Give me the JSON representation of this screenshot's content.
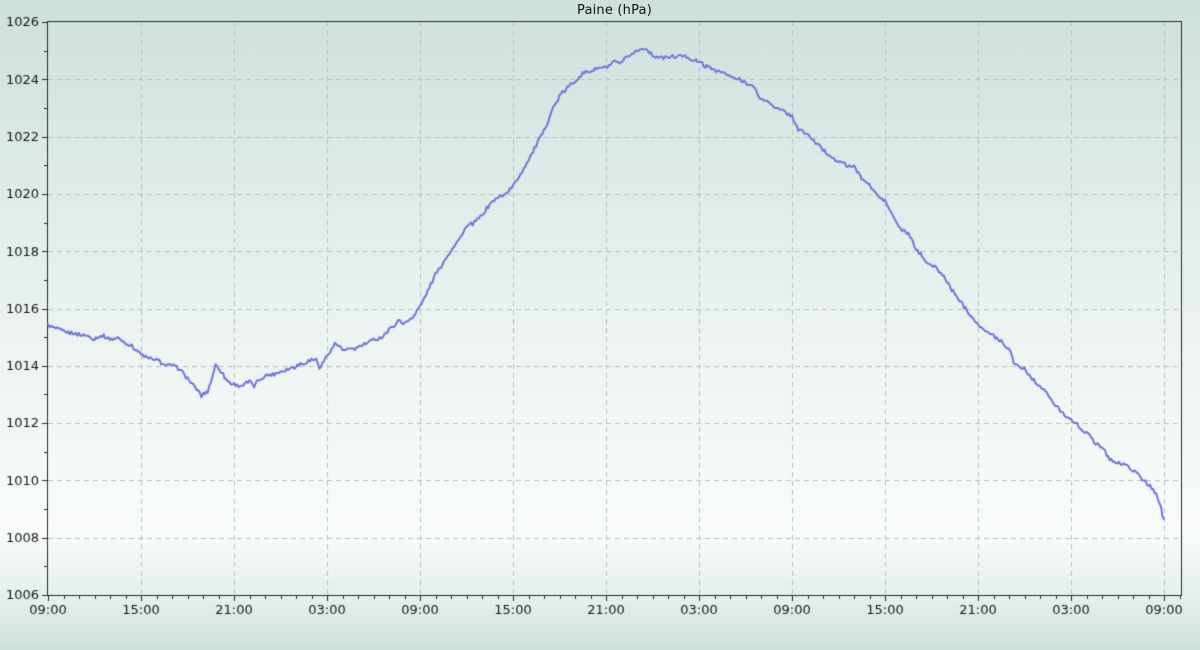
{
  "chart_data": {
    "type": "line",
    "title": "Paine (hPa)",
    "xlabel": "",
    "ylabel": "",
    "ylim": [
      1006,
      1026
    ],
    "y_major_tick_step": 2,
    "y_minor_tick_step": 1,
    "y_tick_labels": [
      "1006",
      "1008",
      "1010",
      "1012",
      "1014",
      "1016",
      "1018",
      "1020",
      "1022",
      "1024",
      "1026"
    ],
    "x_hours_total": 72,
    "x_major_tick_every_hours": 6,
    "x_minor_tick_every_hours": 1,
    "x_tick_labels": [
      "09:00",
      "15:00",
      "21:00",
      "03:00",
      "09:00",
      "15:00",
      "21:00",
      "03:00",
      "09:00",
      "15:00",
      "21:00",
      "03:00",
      "09:00"
    ],
    "grid": {
      "style": "dashed",
      "major_x": true,
      "major_y": true
    },
    "legend": "none",
    "series": [
      {
        "name": "Paine",
        "color": "#7276d6",
        "points_hours_hpa": [
          [
            0,
            1015.4
          ],
          [
            0.5,
            1015.3
          ],
          [
            1,
            1015.2
          ],
          [
            1.5,
            1015.15
          ],
          [
            2,
            1015.1
          ],
          [
            2.5,
            1015.05
          ],
          [
            3,
            1014.95
          ],
          [
            3.5,
            1015.05
          ],
          [
            4,
            1014.95
          ],
          [
            4.5,
            1014.95
          ],
          [
            5,
            1014.8
          ],
          [
            5.5,
            1014.65
          ],
          [
            6,
            1014.4
          ],
          [
            6.5,
            1014.25
          ],
          [
            7,
            1014.2
          ],
          [
            7.5,
            1014.05
          ],
          [
            8,
            1014.0
          ],
          [
            8.5,
            1013.9
          ],
          [
            9,
            1013.55
          ],
          [
            9.5,
            1013.25
          ],
          [
            9.9,
            1012.95
          ],
          [
            10.3,
            1013.1
          ],
          [
            10.6,
            1013.6
          ],
          [
            10.8,
            1014.0
          ],
          [
            11,
            1013.95
          ],
          [
            11.3,
            1013.7
          ],
          [
            11.6,
            1013.45
          ],
          [
            12,
            1013.35
          ],
          [
            12.5,
            1013.3
          ],
          [
            13,
            1013.45
          ],
          [
            13.3,
            1013.3
          ],
          [
            13.6,
            1013.5
          ],
          [
            14,
            1013.65
          ],
          [
            14.5,
            1013.7
          ],
          [
            15,
            1013.8
          ],
          [
            15.5,
            1013.9
          ],
          [
            16,
            1014.0
          ],
          [
            16.5,
            1014.1
          ],
          [
            17,
            1014.2
          ],
          [
            17.3,
            1014.25
          ],
          [
            17.5,
            1013.9
          ],
          [
            17.8,
            1014.15
          ],
          [
            18,
            1014.35
          ],
          [
            18.5,
            1014.75
          ],
          [
            18.8,
            1014.7
          ],
          [
            19,
            1014.55
          ],
          [
            19.5,
            1014.55
          ],
          [
            20,
            1014.65
          ],
          [
            20.5,
            1014.75
          ],
          [
            21,
            1014.9
          ],
          [
            21.5,
            1015.0
          ],
          [
            22,
            1015.25
          ],
          [
            22.4,
            1015.45
          ],
          [
            22.7,
            1015.6
          ],
          [
            23,
            1015.45
          ],
          [
            23.5,
            1015.7
          ],
          [
            24,
            1016.05
          ],
          [
            24.5,
            1016.6
          ],
          [
            25,
            1017.2
          ],
          [
            25.5,
            1017.6
          ],
          [
            26,
            1018.05
          ],
          [
            26.5,
            1018.4
          ],
          [
            27,
            1018.85
          ],
          [
            27.5,
            1019.0
          ],
          [
            28,
            1019.25
          ],
          [
            28.5,
            1019.65
          ],
          [
            29,
            1019.85
          ],
          [
            29.5,
            1020.0
          ],
          [
            30,
            1020.25
          ],
          [
            30.5,
            1020.7
          ],
          [
            31,
            1021.2
          ],
          [
            31.5,
            1021.7
          ],
          [
            32,
            1022.2
          ],
          [
            32.5,
            1022.9
          ],
          [
            33,
            1023.4
          ],
          [
            33.5,
            1023.7
          ],
          [
            34,
            1023.95
          ],
          [
            34.5,
            1024.2
          ],
          [
            35,
            1024.3
          ],
          [
            35.5,
            1024.4
          ],
          [
            36,
            1024.4
          ],
          [
            36.5,
            1024.6
          ],
          [
            37,
            1024.55
          ],
          [
            37.5,
            1024.85
          ],
          [
            38,
            1025.0
          ],
          [
            38.5,
            1025.1
          ],
          [
            39,
            1024.85
          ],
          [
            39.5,
            1024.75
          ],
          [
            40,
            1024.75
          ],
          [
            40.5,
            1024.8
          ],
          [
            41,
            1024.85
          ],
          [
            41.5,
            1024.7
          ],
          [
            42,
            1024.6
          ],
          [
            42.5,
            1024.45
          ],
          [
            43,
            1024.35
          ],
          [
            43.5,
            1024.25
          ],
          [
            44,
            1024.1
          ],
          [
            44.5,
            1024.0
          ],
          [
            45,
            1023.9
          ],
          [
            45.5,
            1023.75
          ],
          [
            46,
            1023.3
          ],
          [
            46.5,
            1023.2
          ],
          [
            47,
            1023.0
          ],
          [
            47.5,
            1022.85
          ],
          [
            48,
            1022.7
          ],
          [
            48.4,
            1022.25
          ],
          [
            49,
            1022.1
          ],
          [
            49.5,
            1021.8
          ],
          [
            50,
            1021.55
          ],
          [
            50.5,
            1021.3
          ],
          [
            51,
            1021.15
          ],
          [
            51.5,
            1021.0
          ],
          [
            52,
            1020.95
          ],
          [
            52.5,
            1020.55
          ],
          [
            53,
            1020.3
          ],
          [
            53.5,
            1019.95
          ],
          [
            54,
            1019.75
          ],
          [
            54.5,
            1019.25
          ],
          [
            55,
            1018.75
          ],
          [
            55.5,
            1018.6
          ],
          [
            56,
            1018.1
          ],
          [
            56.5,
            1017.75
          ],
          [
            57,
            1017.5
          ],
          [
            57.5,
            1017.3
          ],
          [
            58,
            1016.95
          ],
          [
            58.5,
            1016.5
          ],
          [
            59,
            1016.15
          ],
          [
            59.5,
            1015.8
          ],
          [
            60,
            1015.45
          ],
          [
            60.5,
            1015.2
          ],
          [
            61,
            1015.05
          ],
          [
            61.5,
            1014.85
          ],
          [
            62,
            1014.6
          ],
          [
            62.3,
            1014.15
          ],
          [
            62.6,
            1014.0
          ],
          [
            63,
            1013.9
          ],
          [
            63.5,
            1013.55
          ],
          [
            64,
            1013.3
          ],
          [
            64.5,
            1013.0
          ],
          [
            65,
            1012.6
          ],
          [
            65.5,
            1012.35
          ],
          [
            66,
            1012.1
          ],
          [
            66.5,
            1011.9
          ],
          [
            67,
            1011.65
          ],
          [
            67.5,
            1011.35
          ],
          [
            68,
            1011.15
          ],
          [
            68.5,
            1010.75
          ],
          [
            69,
            1010.6
          ],
          [
            69.5,
            1010.55
          ],
          [
            70,
            1010.35
          ],
          [
            70.5,
            1010.1
          ],
          [
            71,
            1009.85
          ],
          [
            71.5,
            1009.55
          ],
          [
            71.8,
            1009.1
          ],
          [
            71.9,
            1008.75
          ],
          [
            72,
            1008.6
          ]
        ]
      }
    ]
  },
  "colors": {
    "line": "#7276d6",
    "grid": "#b7c2bf",
    "axis": "#2a2a2a",
    "text": "#1a1a1a",
    "bg_top": "#cde0dc",
    "bg_middle": "#f8fbfa",
    "bg_bottom": "#cddfdb"
  }
}
